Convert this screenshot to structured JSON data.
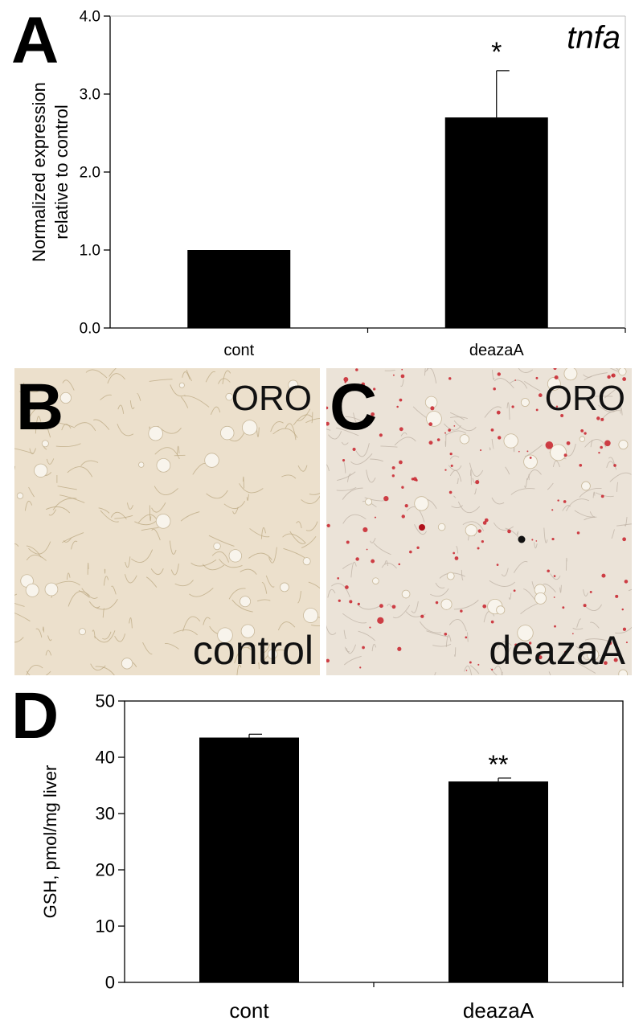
{
  "panels": {
    "a": {
      "letter": "A"
    },
    "b": {
      "letter": "B",
      "stain": "ORO",
      "condition": "control"
    },
    "c": {
      "letter": "C",
      "stain": "ORO",
      "condition": "deazaA"
    },
    "d": {
      "letter": "D"
    }
  },
  "colors": {
    "bar": "#000000",
    "axis": "#000000",
    "tissue_bg": "#ece0cc",
    "stain_red": "#c8202a"
  },
  "chart_data": [
    {
      "type": "bar",
      "panel": "A",
      "annotation_title": "tnfa",
      "categories": [
        "cont",
        "deazaA"
      ],
      "values": [
        1.0,
        2.7
      ],
      "error": [
        0.0,
        0.6
      ],
      "significance": [
        "",
        "*"
      ],
      "ylabel_lines": [
        "Normalized expression",
        "relative to control"
      ],
      "ylim": [
        0,
        4.0
      ],
      "yticks": [
        "0.0",
        "1.0",
        "2.0",
        "3.0",
        "4.0"
      ],
      "grid": false
    },
    {
      "type": "bar",
      "panel": "D",
      "categories": [
        "cont",
        "deazaA"
      ],
      "values": [
        43.5,
        35.7
      ],
      "error": [
        0.6,
        0.6
      ],
      "significance": [
        "",
        "**"
      ],
      "ylabel": "GSH, pmol/mg liver",
      "ylim": [
        0,
        50
      ],
      "yticks": [
        "0",
        "10",
        "20",
        "30",
        "40",
        "50"
      ],
      "grid": false
    }
  ]
}
